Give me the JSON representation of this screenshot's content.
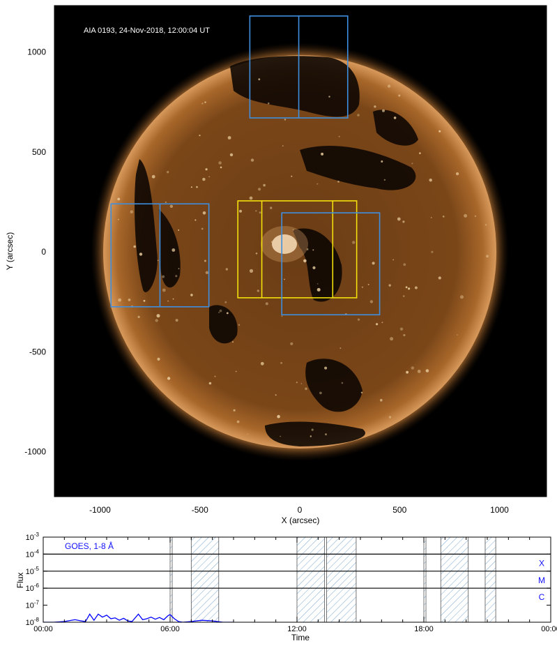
{
  "chart_data": [
    {
      "type": "image",
      "title": "AIA 0193, 24-Nov-2018, 12:00:04 UT",
      "xlabel": "X (arcsec)",
      "ylabel": "Y (arcsec)",
      "xlim": [
        -1230,
        1230
      ],
      "ylim": [
        -1230,
        1230
      ],
      "xticks": [
        -1000,
        -500,
        0,
        500,
        1000
      ],
      "yticks": [
        -1000,
        -500,
        0,
        500,
        1000
      ],
      "xtick_labels": [
        "-1000",
        "-500",
        "0",
        "500",
        "1000"
      ],
      "ytick_labels": [
        "-1000",
        "-500",
        "0",
        "500",
        "1000"
      ],
      "colors": {
        "disk": "#6b3d15",
        "limb": "#e8b27a",
        "coronal_hole": "#0b0602",
        "background": "#000000",
        "box_blue": "#3f8fe0",
        "box_yellow": "#f2e10a"
      },
      "boxes": [
        {
          "color": "blue",
          "x0": -250,
          "x1": 240,
          "y0": 670,
          "y1": 1180,
          "divider_x": -5
        },
        {
          "color": "blue",
          "x0": -945,
          "x1": -455,
          "y0": -275,
          "y1": 240,
          "divider_x": -700
        },
        {
          "color": "yellow",
          "x0": -310,
          "x1": 285,
          "y0": -230,
          "y1": 255,
          "dividers_x": [
            -190,
            165
          ]
        },
        {
          "color": "blue",
          "x0": -90,
          "x1": 400,
          "y0": -315,
          "y1": 195
        }
      ]
    },
    {
      "type": "line",
      "series": [
        {
          "name": "GOES, 1-8 Å",
          "x": [
            0,
            0.5,
            1.0,
            1.5,
            1.8,
            2.0,
            2.2,
            2.4,
            2.6,
            2.8,
            3.0,
            3.2,
            3.4,
            3.6,
            3.8,
            4.0,
            4.2,
            4.5,
            4.7,
            4.9,
            5.1,
            5.3,
            5.5,
            5.7,
            5.9,
            6.0,
            6.2,
            6.4,
            6.6,
            7.0,
            7.5,
            8.0,
            8.5,
            9.0
          ],
          "y": [
            1e-08,
            1e-08,
            1.1e-08,
            1.4e-08,
            1.2e-08,
            1.1e-08,
            3e-08,
            1.3e-08,
            3e-08,
            2e-08,
            2.6e-08,
            1.6e-08,
            1.8e-08,
            1.3e-08,
            1.7e-08,
            1.2e-08,
            1.1e-08,
            3e-08,
            1.4e-08,
            1.6e-08,
            2e-08,
            1.5e-08,
            1.9e-08,
            1.4e-08,
            2.4e-08,
            2.8e-08,
            1.6e-08,
            1.1e-08,
            1e-08,
            1.1e-08,
            1.3e-08,
            1.2e-08,
            1e-08,
            1e-08
          ]
        }
      ],
      "xlabel": "Time",
      "ylabel": "Flux",
      "xlim": [
        0,
        24
      ],
      "ylim": [
        1e-08,
        0.001
      ],
      "y_log": true,
      "xtick_labels": [
        "00:00",
        "06:00",
        "12:00",
        "18:00",
        "00:00"
      ],
      "xticks": [
        0,
        6,
        12,
        18,
        24
      ],
      "ytick_exponents": [
        "-8",
        "-7",
        "-6",
        "-5",
        "-4",
        "-3"
      ],
      "ytick_base": "10",
      "class_lines": [
        {
          "label": "X",
          "value": 0.0001
        },
        {
          "label": "M",
          "value": 1e-05
        },
        {
          "label": "C",
          "value": 1e-06
        }
      ],
      "hatched_intervals": [
        [
          6.0,
          6.1
        ],
        [
          7.0,
          8.3
        ],
        [
          12.0,
          13.3
        ],
        [
          13.4,
          14.8
        ],
        [
          18.0,
          18.1
        ],
        [
          18.8,
          20.1
        ],
        [
          20.9,
          21.4
        ]
      ],
      "line_color": "#0000ff",
      "grid": false
    }
  ]
}
